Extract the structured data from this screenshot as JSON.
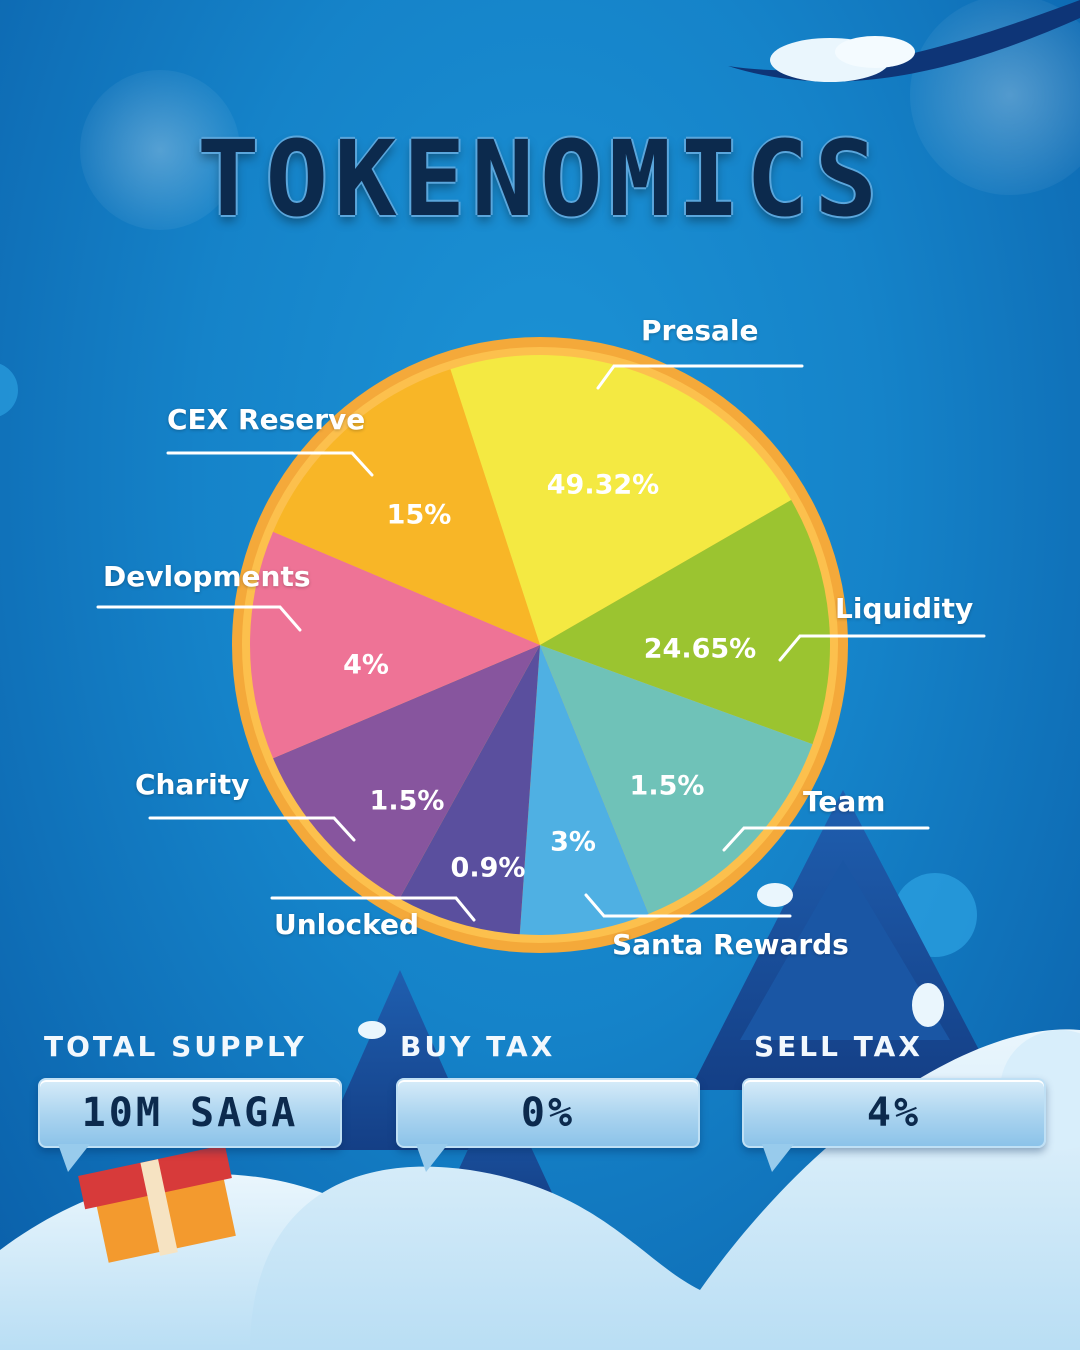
{
  "title": "TOKENOMICS",
  "colors": {
    "background": "#1583c9",
    "pie_rim": "#f4a93a",
    "title_text": "#0c2a4d"
  },
  "chart_data": {
    "type": "pie",
    "slices": [
      {
        "label": "Presale",
        "value": 49.32,
        "value_label": "49.32%",
        "color": "#f4e942"
      },
      {
        "label": "Liquidity",
        "value": 24.65,
        "value_label": "24.65%",
        "color": "#9bc430"
      },
      {
        "label": "Team",
        "value": 1.5,
        "value_label": "1.5%",
        "color": "#6fc2b8"
      },
      {
        "label": "Santa Rewards",
        "value": 3,
        "value_label": "3%",
        "color": "#4fb0e3"
      },
      {
        "label": "Unlocked",
        "value": 0.9,
        "value_label": "0.9%",
        "color": "#5a4f9e"
      },
      {
        "label": "Charity",
        "value": 1.5,
        "value_label": "1.5%",
        "color": "#87559e"
      },
      {
        "label": "Devlopments",
        "value": 4,
        "value_label": "4%",
        "color": "#ee7396"
      },
      {
        "label": "CEX Reserve",
        "value": 15,
        "value_label": "15%",
        "color": "#f8b627"
      }
    ]
  },
  "stats": [
    {
      "title": "TOTAL SUPPLY",
      "value": "10M SAGA"
    },
    {
      "title": "BUY TAX",
      "value": "0%"
    },
    {
      "title": "SELL TAX",
      "value": "4%"
    }
  ]
}
